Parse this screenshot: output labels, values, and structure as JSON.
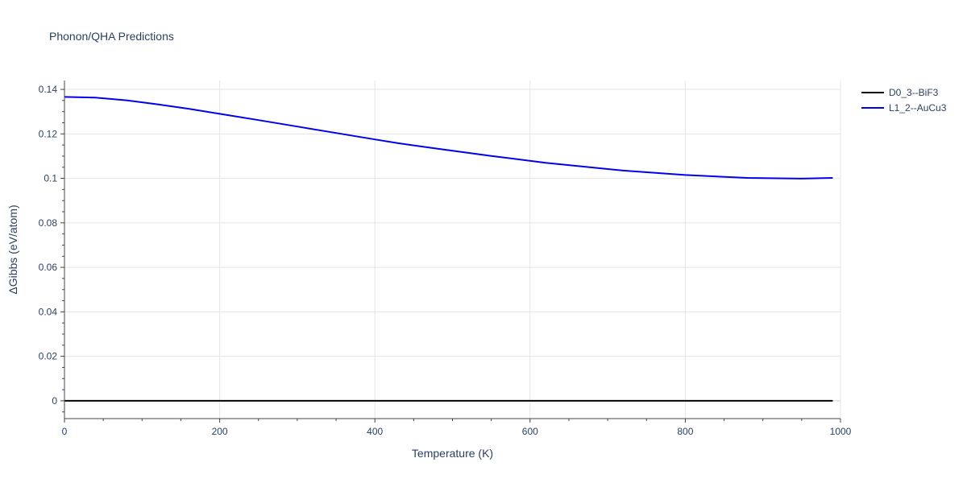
{
  "chart_data": {
    "type": "line",
    "title": "Phonon/QHA Predictions",
    "xlabel": "Temperature (K)",
    "ylabel": "ΔGibbs (eV/atom)",
    "xlim": [
      0,
      1000
    ],
    "ylim": [
      -0.008,
      0.144
    ],
    "x_ticks": [
      0,
      200,
      400,
      600,
      800,
      1000
    ],
    "x_tick_labels": [
      "0",
      "200",
      "400",
      "600",
      "800",
      "1000"
    ],
    "y_ticks": [
      0,
      0.02,
      0.04,
      0.06,
      0.08,
      0.1,
      0.12,
      0.14
    ],
    "y_tick_labels": [
      "0",
      "0.02",
      "0.04",
      "0.06",
      "0.08",
      "0.1",
      "0.12",
      "0.14"
    ],
    "grid": true,
    "legend_position": "top-right",
    "series": [
      {
        "name": "D0_3--BiF3",
        "color": "#000000",
        "x": [
          0,
          990
        ],
        "y": [
          0,
          0
        ]
      },
      {
        "name": "L1_2--AuCu3",
        "color": "#0000ee",
        "x": [
          0,
          40,
          80,
          120,
          160,
          200,
          250,
          300,
          350,
          400,
          430,
          480,
          550,
          620,
          720,
          800,
          880,
          950,
          990
        ],
        "y": [
          0.1366,
          0.1363,
          0.1351,
          0.1333,
          0.1313,
          0.129,
          0.1262,
          0.1233,
          0.1204,
          0.1175,
          0.1158,
          0.1134,
          0.1101,
          0.107,
          0.1035,
          0.1015,
          0.1002,
          0.0999,
          0.1002
        ]
      }
    ]
  }
}
